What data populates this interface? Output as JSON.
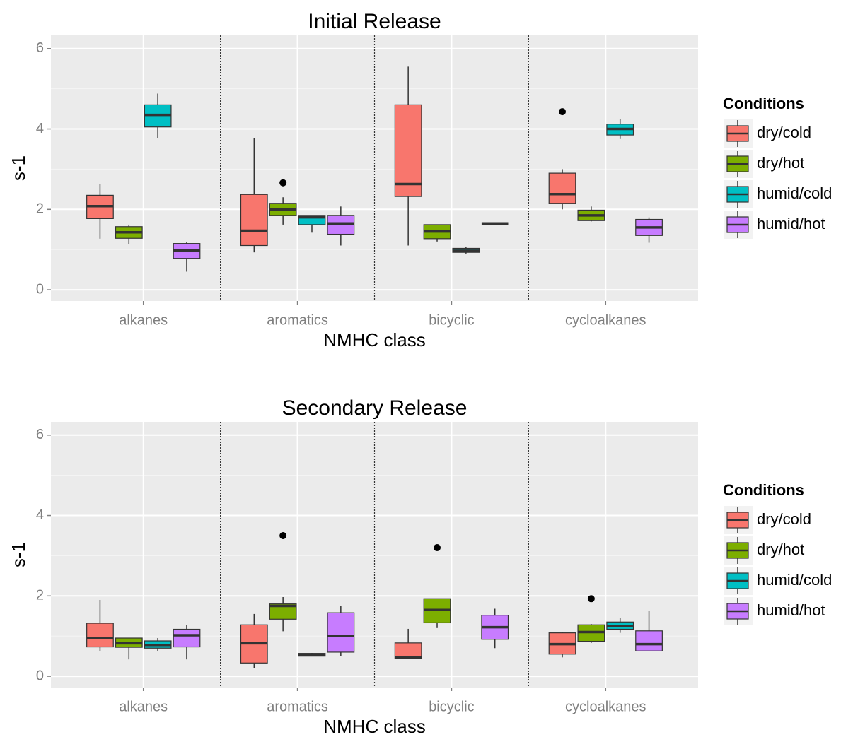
{
  "chart_data": [
    {
      "type": "box",
      "title": "Initial Release",
      "x_label": "NMHC class",
      "y_label": "s-1",
      "legend_title": "Conditions",
      "categories": [
        "alkanes",
        "aromatics",
        "bicyclic",
        "cycloalkanes"
      ],
      "ylim": [
        -0.28,
        6.33
      ],
      "yticks": [
        0,
        2,
        4,
        6
      ],
      "grid": true,
      "series": [
        {
          "name": "dry/cold",
          "color": "#F8766D",
          "values": [
            {
              "min": 1.27,
              "q1": 1.77,
              "median": 2.08,
              "q3": 2.35,
              "max": 2.63
            },
            {
              "min": 0.93,
              "q1": 1.1,
              "median": 1.47,
              "q3": 2.37,
              "max": 3.77
            },
            {
              "min": 1.1,
              "q1": 2.32,
              "median": 2.63,
              "q3": 4.6,
              "max": 5.55
            },
            {
              "min": 2.0,
              "q1": 2.15,
              "median": 2.38,
              "q3": 2.9,
              "max": 3.0,
              "outliers": [
                4.43
              ]
            }
          ]
        },
        {
          "name": "dry/hot",
          "color": "#7CAE00",
          "values": [
            {
              "min": 1.13,
              "q1": 1.28,
              "median": 1.43,
              "q3": 1.57,
              "max": 1.62
            },
            {
              "min": 1.62,
              "q1": 1.85,
              "median": 2.0,
              "q3": 2.15,
              "max": 2.3,
              "outliers": [
                2.66
              ]
            },
            {
              "min": 1.2,
              "q1": 1.27,
              "median": 1.45,
              "q3": 1.62,
              "max": 1.62
            },
            {
              "min": 1.7,
              "q1": 1.72,
              "median": 1.85,
              "q3": 1.98,
              "max": 2.07
            }
          ]
        },
        {
          "name": "humid/cold",
          "color": "#00BFC4",
          "values": [
            {
              "min": 3.78,
              "q1": 4.05,
              "median": 4.35,
              "q3": 4.6,
              "max": 4.88
            },
            {
              "min": 1.42,
              "q1": 1.62,
              "median": 1.8,
              "q3": 1.85,
              "max": 1.85
            },
            {
              "min": 0.9,
              "q1": 0.93,
              "median": 0.97,
              "q3": 1.03,
              "max": 1.07
            },
            {
              "min": 3.75,
              "q1": 3.85,
              "median": 4.0,
              "q3": 4.12,
              "max": 4.25
            }
          ]
        },
        {
          "name": "humid/hot",
          "color": "#C77CFF",
          "values": [
            {
              "min": 0.45,
              "q1": 0.78,
              "median": 0.98,
              "q3": 1.15,
              "max": 1.18
            },
            {
              "min": 1.1,
              "q1": 1.38,
              "median": 1.65,
              "q3": 1.85,
              "max": 2.07
            },
            {
              "min": 1.65,
              "q1": 1.65,
              "median": 1.65,
              "q3": 1.65,
              "max": 1.65
            },
            {
              "min": 1.17,
              "q1": 1.35,
              "median": 1.55,
              "q3": 1.75,
              "max": 1.8
            }
          ]
        }
      ]
    },
    {
      "type": "box",
      "title": "Secondary Release",
      "x_label": "NMHC class",
      "y_label": "s-1",
      "legend_title": "Conditions",
      "categories": [
        "alkanes",
        "aromatics",
        "bicyclic",
        "cycloalkanes"
      ],
      "ylim": [
        -0.28,
        6.33
      ],
      "yticks": [
        0,
        2,
        4,
        6
      ],
      "grid": true,
      "series": [
        {
          "name": "dry/cold",
          "color": "#F8766D",
          "values": [
            {
              "min": 0.63,
              "q1": 0.73,
              "median": 0.95,
              "q3": 1.32,
              "max": 1.9
            },
            {
              "min": 0.2,
              "q1": 0.33,
              "median": 0.82,
              "q3": 1.28,
              "max": 1.55
            },
            {
              "min": 0.45,
              "q1": 0.45,
              "median": 0.47,
              "q3": 0.83,
              "max": 1.18
            },
            {
              "min": 0.47,
              "q1": 0.55,
              "median": 0.8,
              "q3": 1.08,
              "max": 1.1
            }
          ]
        },
        {
          "name": "dry/hot",
          "color": "#7CAE00",
          "values": [
            {
              "min": 0.42,
              "q1": 0.72,
              "median": 0.82,
              "q3": 0.95,
              "max": 0.95
            },
            {
              "min": 1.12,
              "q1": 1.42,
              "median": 1.75,
              "q3": 1.8,
              "max": 1.97,
              "outliers": [
                3.5
              ]
            },
            {
              "min": 1.2,
              "q1": 1.33,
              "median": 1.65,
              "q3": 1.93,
              "max": 1.93,
              "outliers": [
                3.2
              ]
            },
            {
              "min": 0.83,
              "q1": 0.87,
              "median": 1.1,
              "q3": 1.28,
              "max": 1.3,
              "outliers": [
                1.93
              ]
            }
          ]
        },
        {
          "name": "humid/cold",
          "color": "#00BFC4",
          "values": [
            {
              "min": 0.63,
              "q1": 0.7,
              "median": 0.78,
              "q3": 0.88,
              "max": 0.95
            },
            {
              "min": 0.5,
              "q1": 0.5,
              "median": 0.53,
              "q3": 0.57,
              "max": 0.58
            },
            null,
            {
              "min": 1.08,
              "q1": 1.17,
              "median": 1.25,
              "q3": 1.35,
              "max": 1.45
            }
          ]
        },
        {
          "name": "humid/hot",
          "color": "#C77CFF",
          "values": [
            {
              "min": 0.42,
              "q1": 0.73,
              "median": 1.02,
              "q3": 1.17,
              "max": 1.28
            },
            {
              "min": 0.5,
              "q1": 0.6,
              "median": 1.0,
              "q3": 1.58,
              "max": 1.75
            },
            {
              "min": 0.7,
              "q1": 0.92,
              "median": 1.22,
              "q3": 1.52,
              "max": 1.68
            },
            {
              "min": 0.62,
              "q1": 0.63,
              "median": 0.8,
              "q3": 1.13,
              "max": 1.62
            }
          ]
        }
      ]
    }
  ]
}
